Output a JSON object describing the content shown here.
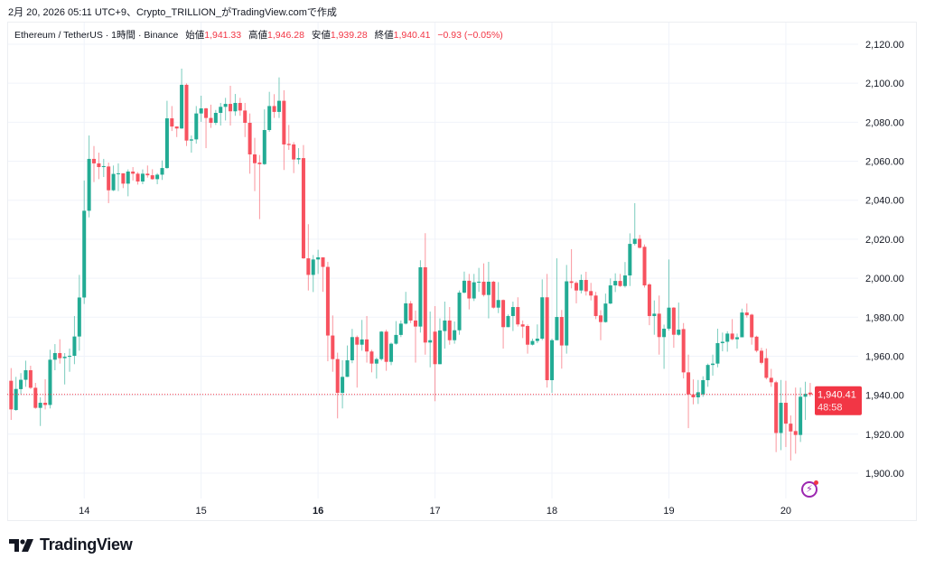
{
  "caption": "2月 20, 2026 05:11 UTC+9、Crypto_TRILLION_がTradingView.comで作成",
  "legend": {
    "symbol": "Ethereum / TetherUS · 1時間 · Binance",
    "open_label": "始値",
    "open": "1,941.33",
    "high_label": "高値",
    "high": "1,946.28",
    "low_label": "安値",
    "low": "1,939.28",
    "close_label": "終値",
    "close": "1,940.41",
    "change": "−0.93 (−0.05%)"
  },
  "price_tag": {
    "price": "1,940.41",
    "countdown": "48:58"
  },
  "logo_text": "TradingView",
  "colors": {
    "up": "#22ab94",
    "down": "#f7525f",
    "tag": "#f23645"
  },
  "chart_data": {
    "type": "candlestick",
    "title": "Ethereum / TetherUS · 1時間 · Binance",
    "interval": "1h",
    "last_price": 1940.41,
    "ylim": [
      1890,
      2125
    ],
    "y_ticks": [
      1900,
      1920,
      1940,
      1960,
      1980,
      2000,
      2020,
      2040,
      2060,
      2080,
      2100,
      2120
    ],
    "y_tick_labels": [
      "1,900.00",
      "1,920.00",
      "1,940.00",
      "1,960.00",
      "1,980.00",
      "2,000.00",
      "2,020.00",
      "2,040.00",
      "2,060.00",
      "2,080.00",
      "2,100.00",
      "2,120.00"
    ],
    "x_ticks": [
      {
        "label": "14",
        "index": 15
      },
      {
        "label": "15",
        "index": 39
      },
      {
        "label": "16",
        "index": 63,
        "bold": true
      },
      {
        "label": "17",
        "index": 87
      },
      {
        "label": "18",
        "index": 111
      },
      {
        "label": "19",
        "index": 135
      },
      {
        "label": "20",
        "index": 159
      }
    ],
    "grid": true,
    "ohlc": [
      [
        1947.4,
        1953.9,
        1927.3,
        1932.7
      ],
      [
        1932.4,
        1949.4,
        1932.0,
        1943.2
      ],
      [
        1943.1,
        1951.3,
        1940.4,
        1947.9
      ],
      [
        1947.9,
        1957.7,
        1944.3,
        1952.8
      ],
      [
        1952.8,
        1955.1,
        1943.2,
        1943.8
      ],
      [
        1943.8,
        1946.3,
        1933.0,
        1933.5
      ],
      [
        1933.5,
        1938.9,
        1924.2,
        1936.1
      ],
      [
        1936.1,
        1948.2,
        1932.7,
        1935.0
      ],
      [
        1935.0,
        1963.3,
        1933.2,
        1958.2
      ],
      [
        1958.2,
        1966.2,
        1952.8,
        1961.6
      ],
      [
        1961.6,
        1968.7,
        1956.2,
        1959.0
      ],
      [
        1959.0,
        1961.6,
        1945.5,
        1959.7
      ],
      [
        1959.7,
        1963.9,
        1952.0,
        1960.2
      ],
      [
        1960.2,
        1980.6,
        1955.9,
        1970.1
      ],
      [
        1970.1,
        2001.7,
        1962.8,
        1990.1
      ],
      [
        1990.1,
        2050.1,
        1986.8,
        2034.6
      ],
      [
        2034.6,
        2073.2,
        2031.2,
        2061.2
      ],
      [
        2061.2,
        2067.8,
        2049.3,
        2058.9
      ],
      [
        2058.9,
        2064.4,
        2050.8,
        2057.0
      ],
      [
        2057.0,
        2061.2,
        2051.9,
        2057.5
      ],
      [
        2057.3,
        2059.3,
        2038.5,
        2045.1
      ],
      [
        2045.1,
        2057.8,
        2044.7,
        2053.5
      ],
      [
        2053.5,
        2058.9,
        2044.7,
        2053.8
      ],
      [
        2053.8,
        2053.8,
        2046.2,
        2048.5
      ],
      [
        2048.5,
        2055.8,
        2042.0,
        2054.7
      ],
      [
        2054.7,
        2057.0,
        2050.1,
        2053.6
      ],
      [
        2053.6,
        2054.4,
        2048.0,
        2049.6
      ],
      [
        2049.6,
        2055.8,
        2048.2,
        2053.6
      ],
      [
        2053.6,
        2057.8,
        2051.6,
        2052.8
      ],
      [
        2052.8,
        2055.9,
        2050.5,
        2050.8
      ],
      [
        2050.8,
        2053.9,
        2048.2,
        2053.1
      ],
      [
        2053.1,
        2060.4,
        2050.4,
        2056.5
      ],
      [
        2056.5,
        2091.0,
        2056.2,
        2082.0
      ],
      [
        2082.0,
        2088.3,
        2075.5,
        2077.8
      ],
      [
        2077.8,
        2077.8,
        2072.4,
        2076.8
      ],
      [
        2076.8,
        2107.5,
        2076.6,
        2099.2
      ],
      [
        2099.2,
        2099.9,
        2067.8,
        2070.6
      ],
      [
        2070.6,
        2073.2,
        2064.4,
        2071.2
      ],
      [
        2071.2,
        2088.3,
        2069.0,
        2084.5
      ],
      [
        2084.5,
        2093.6,
        2080.2,
        2087.1
      ],
      [
        2087.1,
        2087.4,
        2066.7,
        2082.2
      ],
      [
        2082.2,
        2089.0,
        2077.1,
        2079.7
      ],
      [
        2079.7,
        2086.3,
        2078.6,
        2084.8
      ],
      [
        2084.8,
        2089.9,
        2078.3,
        2087.9
      ],
      [
        2087.9,
        2092.5,
        2080.9,
        2089.4
      ],
      [
        2089.4,
        2098.7,
        2078.3,
        2085.6
      ],
      [
        2085.6,
        2094.5,
        2083.3,
        2089.9
      ],
      [
        2089.9,
        2092.5,
        2083.3,
        2086.0
      ],
      [
        2086.0,
        2089.9,
        2072.4,
        2079.7
      ],
      [
        2079.7,
        2084.5,
        2053.6,
        2063.5
      ],
      [
        2063.5,
        2072.0,
        2044.7,
        2059.0
      ],
      [
        2059.3,
        2063.2,
        2030.3,
        2058.5
      ],
      [
        2058.5,
        2086.6,
        2058.1,
        2076.0
      ],
      [
        2076.0,
        2095.6,
        2075.1,
        2088.3
      ],
      [
        2088.3,
        2094.4,
        2082.2,
        2085.3
      ],
      [
        2085.3,
        2103.0,
        2082.2,
        2091.0
      ],
      [
        2091.0,
        2096.4,
        2055.5,
        2068.6
      ],
      [
        2068.9,
        2078.6,
        2065.8,
        2068.3
      ],
      [
        2068.6,
        2069.8,
        2053.9,
        2060.9
      ],
      [
        2060.9,
        2066.7,
        2058.5,
        2061.6
      ],
      [
        2061.6,
        2068.3,
        2009.9,
        2010.2
      ],
      [
        2010.2,
        2027.7,
        1993.7,
        2001.7
      ],
      [
        2001.7,
        2011.9,
        1992.9,
        2009.6
      ],
      [
        2009.6,
        2014.6,
        2002.2,
        2010.7
      ],
      [
        2010.7,
        2010.7,
        1993.0,
        2005.8
      ],
      [
        2005.8,
        2008.4,
        1957.4,
        1970.6
      ],
      [
        1970.6,
        1980.9,
        1952.0,
        1958.5
      ],
      [
        1958.5,
        1961.8,
        1928.1,
        1941.2
      ],
      [
        1941.2,
        1957.9,
        1933.2,
        1949.4
      ],
      [
        1949.4,
        1965.5,
        1949.3,
        1957.9
      ],
      [
        1957.9,
        1974.0,
        1956.4,
        1969.8
      ],
      [
        1969.8,
        1970.6,
        1943.9,
        1965.9
      ],
      [
        1965.9,
        1978.6,
        1962.8,
        1968.6
      ],
      [
        1968.6,
        1980.6,
        1956.7,
        1962.4
      ],
      [
        1962.4,
        1963.3,
        1951.7,
        1956.2
      ],
      [
        1956.2,
        1959.3,
        1948.5,
        1958.5
      ],
      [
        1958.5,
        1972.9,
        1957.7,
        1972.6
      ],
      [
        1972.6,
        1973.6,
        1952.5,
        1957.1
      ],
      [
        1957.1,
        1967.0,
        1955.4,
        1966.4
      ],
      [
        1966.4,
        1978.0,
        1965.9,
        1970.9
      ],
      [
        1970.9,
        1978.3,
        1969.8,
        1976.7
      ],
      [
        1976.7,
        1993.0,
        1976.3,
        1987.1
      ],
      [
        1987.1,
        1988.3,
        1977.0,
        1978.3
      ],
      [
        1978.3,
        1983.4,
        1956.7,
        1975.2
      ],
      [
        1975.2,
        2009.2,
        1972.1,
        2005.6
      ],
      [
        2005.6,
        2023.1,
        1960.8,
        1967.0
      ],
      [
        1967.0,
        1982.9,
        1954.3,
        1968.2
      ],
      [
        1972.6,
        1985.7,
        1936.9,
        1955.9
      ],
      [
        1955.9,
        1979.4,
        1955.9,
        1973.2
      ],
      [
        1972.9,
        1988.0,
        1963.9,
        1978.3
      ],
      [
        1978.3,
        1985.2,
        1965.9,
        1968.2
      ],
      [
        1968.2,
        1977.8,
        1966.4,
        1973.3
      ],
      [
        1973.3,
        1993.7,
        1971.0,
        1992.6
      ],
      [
        1992.6,
        2003.4,
        1992.2,
        1998.7
      ],
      [
        1998.7,
        2002.2,
        1984.0,
        1989.6
      ],
      [
        1989.6,
        2002.2,
        1988.3,
        1997.9
      ],
      [
        1997.9,
        2005.3,
        1993.0,
        1998.2
      ],
      [
        1998.2,
        2007.6,
        1990.6,
        1991.4
      ],
      [
        1991.4,
        2008.4,
        1979.4,
        1998.2
      ],
      [
        1998.2,
        1998.7,
        1984.4,
        1984.9
      ],
      [
        1984.9,
        1998.0,
        1982.1,
        1988.8
      ],
      [
        1988.8,
        1989.1,
        1963.9,
        1974.9
      ],
      [
        1974.9,
        1981.4,
        1974.9,
        1980.6
      ],
      [
        1980.6,
        1988.0,
        1972.9,
        1985.2
      ],
      [
        1985.2,
        1990.2,
        1975.2,
        1976.3
      ],
      [
        1976.3,
        1978.3,
        1969.3,
        1975.2
      ],
      [
        1975.5,
        1976.3,
        1961.3,
        1965.9
      ],
      [
        1965.9,
        1969.0,
        1965.5,
        1967.8
      ],
      [
        1967.8,
        1976.3,
        1966.7,
        1969.0
      ],
      [
        1969.0,
        1999.4,
        1968.2,
        1990.2
      ],
      [
        1990.2,
        2002.2,
        1943.9,
        1947.7
      ],
      [
        1947.7,
        1969.0,
        1941.2,
        1968.2
      ],
      [
        1968.2,
        2010.2,
        1968.2,
        1980.1
      ],
      [
        1980.1,
        1983.7,
        1953.6,
        1965.5
      ],
      [
        1965.5,
        2006.8,
        1961.3,
        1998.4
      ],
      [
        1998.4,
        2014.9,
        1994.8,
        1997.6
      ],
      [
        1997.6,
        1998.4,
        1987.1,
        1993.7
      ],
      [
        1993.7,
        2001.9,
        1992.2,
        1999.1
      ],
      [
        1999.1,
        2003.3,
        1991.1,
        1993.3
      ],
      [
        1993.4,
        1997.6,
        1988.6,
        1991.1
      ],
      [
        1991.1,
        1993.0,
        1979.0,
        1980.6
      ],
      [
        1980.9,
        1983.6,
        1968.2,
        1977.5
      ],
      [
        1977.5,
        1992.1,
        1977.2,
        1987.0
      ],
      [
        1987.0,
        1999.9,
        1986.7,
        1996.3
      ],
      [
        1996.3,
        2002.5,
        1992.9,
        1998.6
      ],
      [
        1998.6,
        2002.2,
        1995.5,
        1996.0
      ],
      [
        1996.0,
        2008.3,
        1995.2,
        2001.4
      ],
      [
        2001.4,
        2023.0,
        1996.0,
        2017.6
      ],
      [
        2017.6,
        2038.5,
        2016.8,
        2020.2
      ],
      [
        2020.2,
        2022.2,
        2015.3,
        2015.6
      ],
      [
        2016.1,
        2017.3,
        1995.2,
        1996.3
      ],
      [
        1996.8,
        1997.5,
        1975.9,
        1980.6
      ],
      [
        1980.6,
        1988.6,
        1971.0,
        1981.8
      ],
      [
        1981.8,
        1991.1,
        1960.8,
        1969.8
      ],
      [
        1969.8,
        1976.2,
        1953.5,
        1974.1
      ],
      [
        1974.1,
        2009.6,
        1973.1,
        1984.9
      ],
      [
        1984.9,
        1985.2,
        1964.3,
        1971.0
      ],
      [
        1971.0,
        1987.5,
        1970.5,
        1973.6
      ],
      [
        1973.9,
        1977.0,
        1948.6,
        1951.7
      ],
      [
        1951.7,
        1960.8,
        1923.1,
        1940.4
      ],
      [
        1940.4,
        1948.1,
        1935.3,
        1938.9
      ],
      [
        1938.9,
        1947.8,
        1935.5,
        1941.5
      ],
      [
        1940.4,
        1949.7,
        1939.2,
        1947.7
      ],
      [
        1947.7,
        1956.2,
        1944.3,
        1955.5
      ],
      [
        1955.5,
        1960.8,
        1950.0,
        1956.2
      ],
      [
        1956.2,
        1974.1,
        1954.3,
        1966.7
      ],
      [
        1966.7,
        1972.1,
        1962.5,
        1967.4
      ],
      [
        1967.4,
        1972.8,
        1962.3,
        1971.6
      ],
      [
        1971.6,
        1979.0,
        1968.2,
        1968.7
      ],
      [
        1968.7,
        1971.6,
        1963.9,
        1969.7
      ],
      [
        1969.7,
        1984.4,
        1969.7,
        1982.4
      ],
      [
        1982.4,
        1987.0,
        1979.8,
        1981.0
      ],
      [
        1981.3,
        1981.8,
        1965.9,
        1969.7
      ],
      [
        1970.0,
        1970.5,
        1962.0,
        1962.8
      ],
      [
        1962.8,
        1964.3,
        1955.8,
        1956.6
      ],
      [
        1959.0,
        1963.9,
        1948.1,
        1948.9
      ],
      [
        1948.9,
        1953.5,
        1944.3,
        1946.6
      ],
      [
        1946.6,
        1947.4,
        1910.8,
        1920.6
      ],
      [
        1920.6,
        1947.8,
        1911.8,
        1936.1
      ],
      [
        1936.1,
        1947.4,
        1913.4,
        1925.4
      ],
      [
        1925.4,
        1929.6,
        1906.5,
        1921.4
      ],
      [
        1921.6,
        1943.9,
        1910.0,
        1919.6
      ],
      [
        1919.6,
        1943.9,
        1916.0,
        1939.2
      ],
      [
        1939.2,
        1946.9,
        1927.3,
        1940.7
      ],
      [
        1941.33,
        1946.28,
        1939.28,
        1940.41
      ]
    ]
  }
}
